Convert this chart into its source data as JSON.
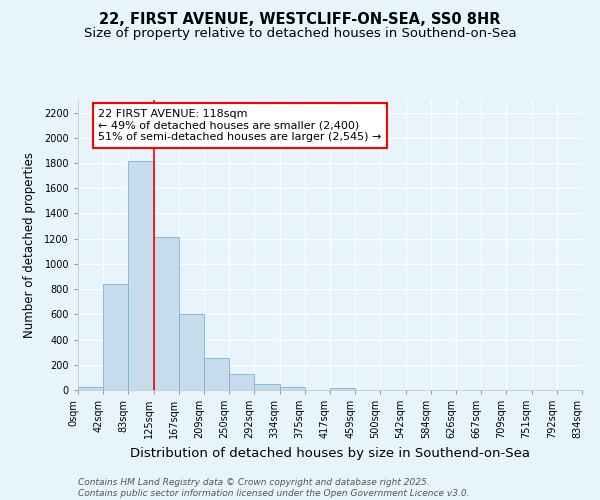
{
  "title_line1": "22, FIRST AVENUE, WESTCLIFF-ON-SEA, SS0 8HR",
  "title_line2": "Size of property relative to detached houses in Southend-on-Sea",
  "xlabel": "Distribution of detached houses by size in Southend-on-Sea",
  "ylabel": "Number of detached properties",
  "bar_values": [
    25,
    840,
    1820,
    1210,
    600,
    255,
    130,
    50,
    25,
    0,
    15,
    0,
    0,
    0,
    0,
    0,
    0,
    0,
    0,
    0
  ],
  "categories": [
    "0sqm",
    "42sqm",
    "83sqm",
    "125sqm",
    "167sqm",
    "209sqm",
    "250sqm",
    "292sqm",
    "334sqm",
    "375sqm",
    "417sqm",
    "459sqm",
    "500sqm",
    "542sqm",
    "584sqm",
    "626sqm",
    "667sqm",
    "709sqm",
    "751sqm",
    "792sqm",
    "834sqm"
  ],
  "bar_color": "#c6dcec",
  "bar_edge_color": "#7ab4d4",
  "vline_x": 2.5,
  "vline_color": "red",
  "annotation_text": "22 FIRST AVENUE: 118sqm\n← 49% of detached houses are smaller (2,400)\n51% of semi-detached houses are larger (2,545) →",
  "annotation_box_facecolor": "white",
  "annotation_box_edgecolor": "red",
  "ylim": [
    0,
    2300
  ],
  "yticks": [
    0,
    200,
    400,
    600,
    800,
    1000,
    1200,
    1400,
    1600,
    1800,
    2000,
    2200
  ],
  "footer_text": "Contains HM Land Registry data © Crown copyright and database right 2025.\nContains public sector information licensed under the Open Government Licence v3.0.",
  "bg_color": "#e8f4fb",
  "grid_color": "white",
  "title_fontsize": 10.5,
  "subtitle_fontsize": 9.5,
  "xlabel_fontsize": 9.5,
  "ylabel_fontsize": 8.5,
  "tick_fontsize": 7,
  "annotation_fontsize": 8,
  "footer_fontsize": 6.5
}
